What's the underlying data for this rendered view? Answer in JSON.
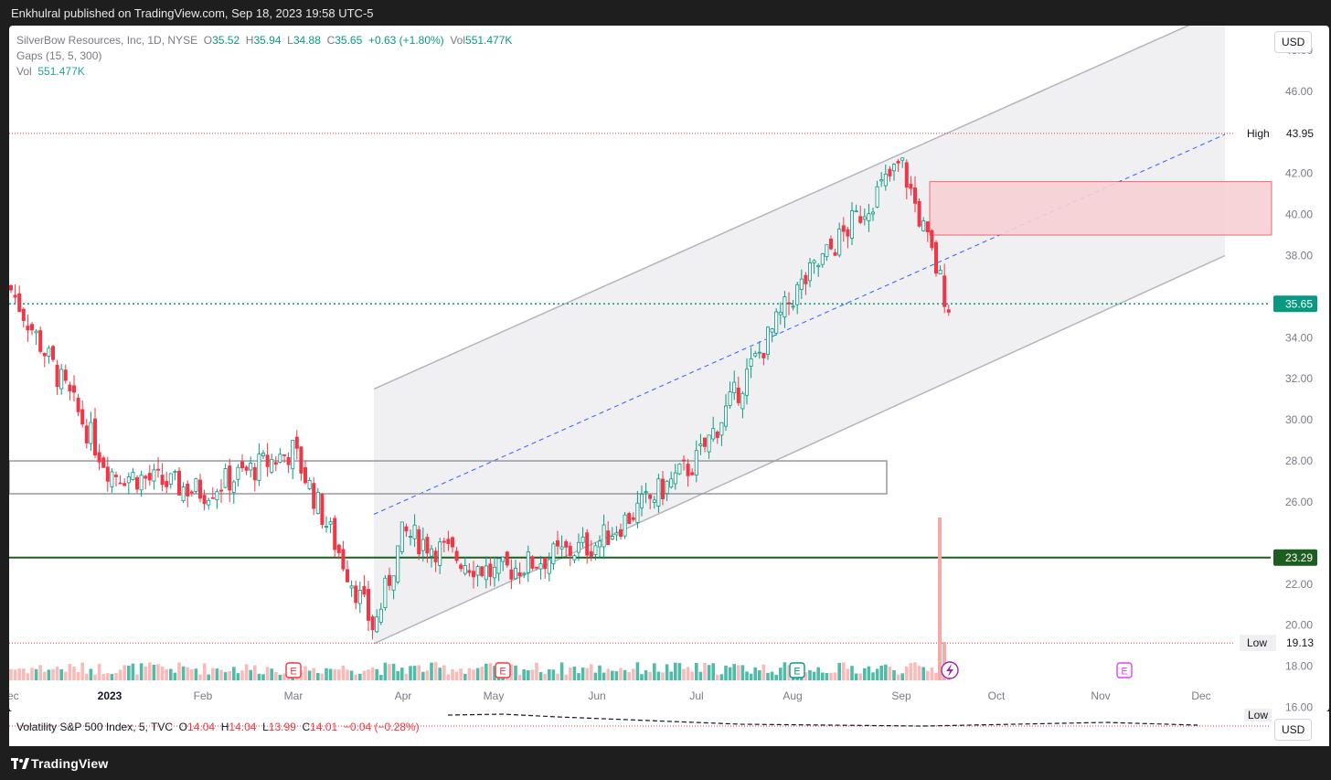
{
  "header": {
    "published": "Enkhulral published on TradingView.com, Sep 18, 2023 19:58 UTC-5"
  },
  "legend": {
    "symbol": "SilverBow Resources, Inc, 1D, NYSE",
    "o_label": "O",
    "open": "35.52",
    "h_label": "H",
    "high": "35.94",
    "l_label": "L",
    "low": "34.88",
    "c_label": "C",
    "close": "35.65",
    "change": "+0.63 (+1.80%)",
    "vol_label": "Vol",
    "vol": "551.477K",
    "gaps": "Gaps (15, 5, 300)",
    "vol_line_label": "Vol",
    "vol_line_value": "551.477K"
  },
  "currency": "USD",
  "vix": {
    "name": "Volatility S&P 500 Index, 5, TVC",
    "o_label": "O",
    "open": "14.04",
    "h_label": "H",
    "high": "14.04",
    "l_label": "L",
    "low": "13.99",
    "c_label": "C",
    "close": "14.01",
    "change": "−0.04 (−0.28%)",
    "low_tag": "Low",
    "currency": "USD"
  },
  "price_tags": {
    "high_label": "High",
    "high_value": "43.95",
    "low_label": "Low",
    "low_value": "19.13",
    "last_value": "35.65",
    "level_value": "23.29"
  },
  "event_markers": [
    {
      "label": "E",
      "date": "Mar",
      "kind": "past"
    },
    {
      "label": "E",
      "date": "May",
      "kind": "past"
    },
    {
      "label": "E",
      "date": "Aug",
      "kind": "past-green"
    },
    {
      "label": "E",
      "date": "Nov",
      "kind": "future"
    }
  ],
  "footer": {
    "brand": "TradingView"
  },
  "colors": {
    "up": "#089981",
    "down": "#f23645",
    "channel": "#b2b5be",
    "midline": "#2962ff",
    "support": "#1b5e20",
    "zone": "#f7d0d3"
  },
  "chart_data": {
    "type": "candlestick",
    "title": "SilverBow Resources, Inc, 1D, NYSE",
    "x_ticks": [
      "Dec",
      "2023",
      "Feb",
      "Mar",
      "Apr",
      "May",
      "Jun",
      "Jul",
      "Aug",
      "Sep",
      "Oct",
      "Nov",
      "Dec"
    ],
    "y_ticks": [
      16,
      18,
      20,
      22,
      24,
      26,
      28,
      30,
      32,
      34,
      36,
      38,
      40,
      42,
      44,
      46,
      48
    ],
    "ylim": [
      15.8,
      49.2
    ],
    "dated_points": [
      {
        "date": "Dec",
        "close": 36.5
      },
      {
        "date": "2023",
        "close": 27.5
      },
      {
        "date": "Feb",
        "close": 26.5
      },
      {
        "date": "Mar",
        "close": 28.5
      },
      {
        "date": "Mar (late)",
        "close": 19.8
      },
      {
        "date": "Apr",
        "close": 24.5
      },
      {
        "date": "May",
        "close": 22.5
      },
      {
        "date": "Jun",
        "close": 24
      },
      {
        "date": "Jul",
        "close": 28
      },
      {
        "date": "Aug",
        "close": 36
      },
      {
        "date": "Sep",
        "close": 42.5
      },
      {
        "date": "Sep (mid)",
        "close": 35.65
      }
    ],
    "last": {
      "open": 35.52,
      "high": 35.94,
      "low": 34.88,
      "close": 35.65,
      "volume": "551.477K"
    },
    "period_high": 43.95,
    "period_low": 19.13,
    "horizontal_levels": [
      23.29
    ],
    "regression_channel": {
      "start": "Mar (late)",
      "end": "Dec",
      "upper": [
        31.5,
        50
      ],
      "mid": [
        25.4,
        43.9
      ],
      "lower": [
        19.1,
        38
      ]
    },
    "gap_zone": {
      "from": "Sep",
      "to": "Dec",
      "low": 39,
      "high": 41.6
    },
    "range_box": {
      "from": "Dec",
      "to": "Aug",
      "low": 26.4,
      "high": 28
    },
    "legend": "none",
    "grid": false
  }
}
